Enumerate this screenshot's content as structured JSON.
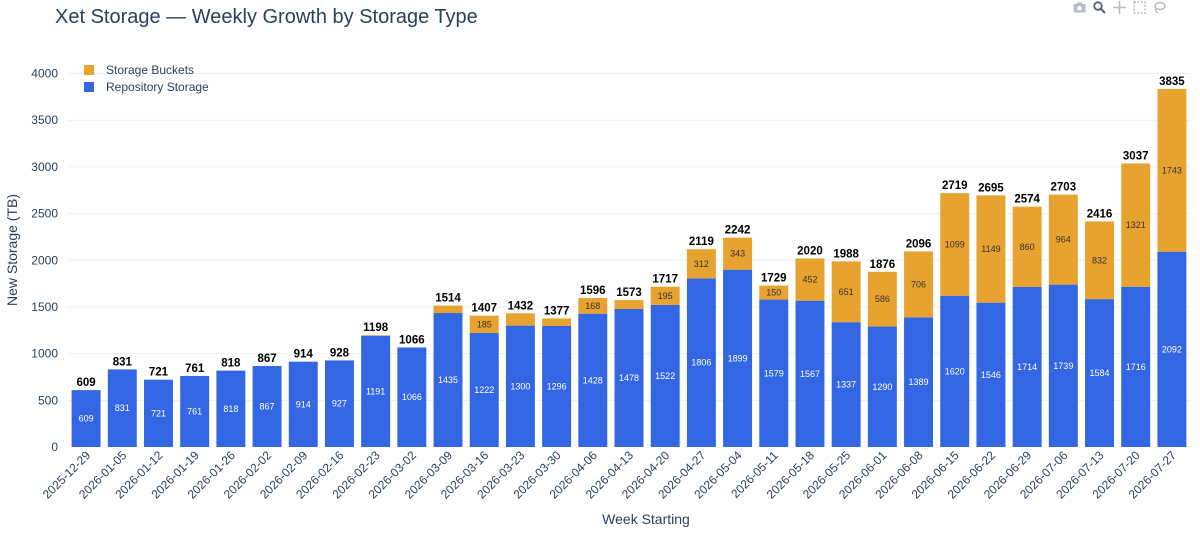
{
  "colors": {
    "buckets": "#e8a230",
    "repository": "#3366e3",
    "grid": "#ebf0f8",
    "text": "#2a3f5f"
  },
  "modebar": {
    "icons": [
      "camera-icon",
      "zoom-icon",
      "pan-icon",
      "select-box-icon",
      "lasso-icon"
    ]
  },
  "chart_data": {
    "type": "bar",
    "stacked": true,
    "title": "Xet Storage — Weekly Growth by Storage Type",
    "xlabel": "Week Starting",
    "ylabel": "New Storage (TB)",
    "ylim": [
      0,
      4100
    ],
    "yticks": [
      0,
      500,
      1000,
      1500,
      2000,
      2500,
      3000,
      3500,
      4000
    ],
    "grid": true,
    "legend_position": "top-left",
    "categories": [
      "2025-12-29",
      "2026-01-05",
      "2026-01-12",
      "2026-01-19",
      "2026-01-26",
      "2026-02-02",
      "2026-02-09",
      "2026-02-16",
      "2026-02-23",
      "2026-03-02",
      "2026-03-09",
      "2026-03-16",
      "2026-03-23",
      "2026-03-30",
      "2026-04-06",
      "2026-04-13",
      "2026-04-20",
      "2026-04-27",
      "2026-05-04",
      "2026-05-11",
      "2026-05-18",
      "2026-05-25",
      "2026-06-01",
      "2026-06-08",
      "2026-06-15",
      "2026-06-22",
      "2026-06-29",
      "2026-07-06",
      "2026-07-13",
      "2026-07-20",
      "2026-07-27"
    ],
    "series": [
      {
        "name": "Repository Storage",
        "values": [
          609,
          831,
          721,
          761,
          818,
          867,
          914,
          927,
          1191,
          1066,
          1435,
          1222,
          1300,
          1296,
          1428,
          1478,
          1522,
          1806,
          1899,
          1579,
          1567,
          1337,
          1290,
          1389,
          1620,
          1546,
          1714,
          1739,
          1584,
          1716,
          2092
        ]
      },
      {
        "name": "Storage Buckets",
        "values": [
          0,
          0,
          0,
          0,
          0,
          0,
          0,
          1,
          7,
          0,
          79,
          185,
          132,
          81,
          168,
          95,
          195,
          312,
          343,
          150,
          452,
          651,
          586,
          706,
          1099,
          1149,
          860,
          964,
          832,
          1321,
          1743
        ]
      }
    ],
    "bucket_labels": [
      "",
      "",
      "",
      "",
      "",
      "",
      "",
      "",
      "",
      "",
      "",
      "185",
      "",
      "",
      "168",
      "",
      "195",
      "312",
      "343",
      "150",
      "452",
      "651",
      "586",
      "706",
      "1099",
      "1149",
      "860",
      "964",
      "832",
      "1321",
      "1743"
    ],
    "totals": [
      609,
      831,
      721,
      761,
      818,
      867,
      914,
      928,
      1198,
      1066,
      1514,
      1407,
      1432,
      1377,
      1596,
      1573,
      1717,
      2119,
      2242,
      1729,
      2020,
      1988,
      1876,
      2096,
      2719,
      2695,
      2574,
      2703,
      2416,
      3037,
      3835
    ]
  }
}
